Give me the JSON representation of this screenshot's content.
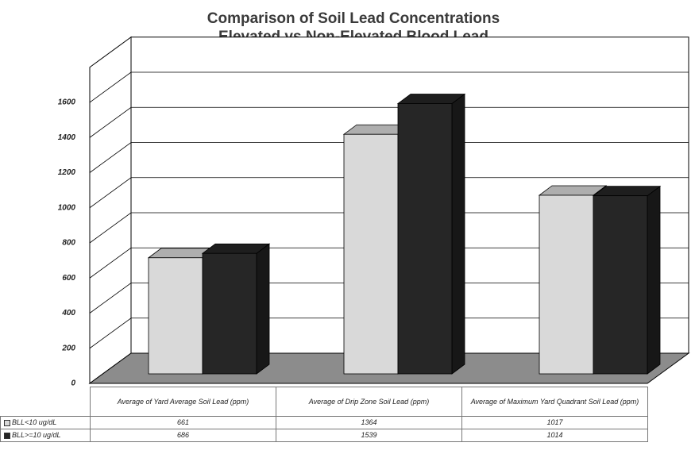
{
  "chart_data": {
    "type": "bar3d",
    "title": "Comparison of Soil Lead Concentrations",
    "subtitle": "Elevated vs Non-Elevated Blood Lead",
    "categories": [
      "Average of Yard Average Soil Lead (ppm)",
      "Average of Drip Zone Soil Lead (ppm)",
      "Average of Maximum Yard Quadrant Soil Lead (ppm)"
    ],
    "series": [
      {
        "name": "BLL<10 ug/dL",
        "color": "#d9d9d9",
        "values": [
          661,
          1364,
          1017
        ]
      },
      {
        "name": "BLL>=10 ug/dL",
        "color": "#262626",
        "values": [
          686,
          1539,
          1014
        ]
      }
    ],
    "ylim": [
      0,
      1800
    ],
    "yticks": [
      0,
      200,
      400,
      600,
      800,
      1000,
      1200,
      1400,
      1600
    ],
    "grid": true
  }
}
